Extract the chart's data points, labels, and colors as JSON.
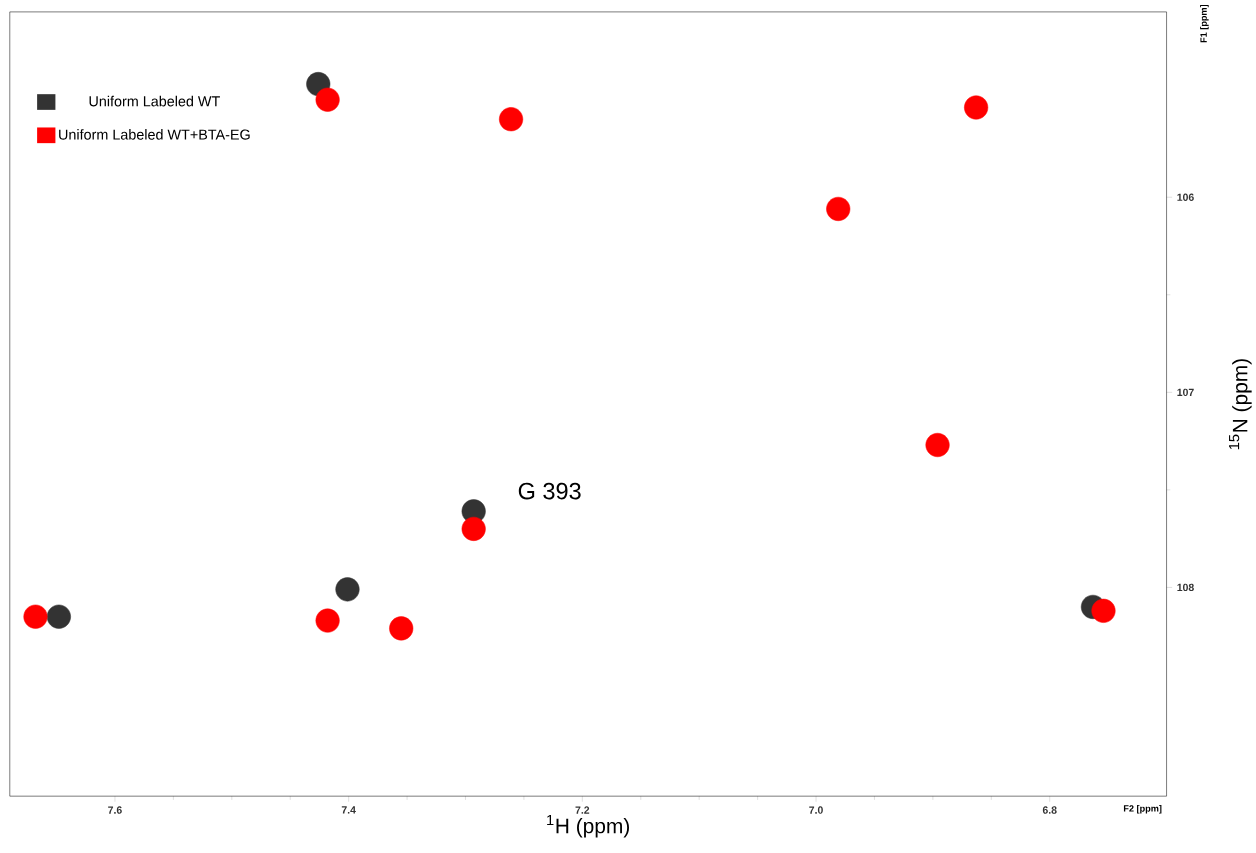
{
  "chart_data": {
    "type": "scatter",
    "xlabel": "$^{1}$H (ppm)",
    "ylabel": "$^{15}$N (ppm)",
    "xlim": [
      7.69,
      6.7
    ],
    "ylim": [
      109.07,
      105.05
    ],
    "xticks": [
      7.6,
      7.4,
      7.2,
      {
        "value": 7.0,
        "label": "7.0"
      },
      6.8
    ],
    "yticks": [
      106,
      107,
      108
    ],
    "grid": false,
    "legend": "top left",
    "series": [
      {
        "name": "Uniform Labeled WT",
        "color": "#333333",
        "x": [
          7.426,
          7.293,
          7.401,
          6.763,
          7.648
        ],
        "values": [
          105.42,
          107.61,
          108.01,
          108.1,
          108.15
        ]
      },
      {
        "name": "Uniform Labeled WT+BTA-EG",
        "color": "#ff0000",
        "x": [
          7.418,
          7.261,
          6.981,
          6.896,
          7.293,
          7.418,
          7.355,
          6.754,
          7.668,
          6.863
        ],
        "values": [
          105.5,
          105.6,
          106.06,
          107.27,
          107.7,
          108.17,
          108.21,
          108.12,
          108.15,
          105.54
        ]
      }
    ],
    "annotations": [
      "G 393",
      "F1 [ppm]",
      "F2 [ppm]"
    ]
  }
}
